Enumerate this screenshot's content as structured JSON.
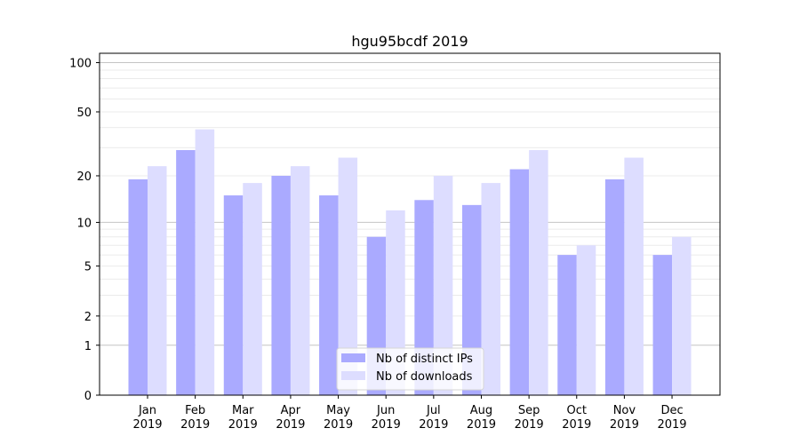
{
  "chart_data": {
    "type": "bar",
    "title": "hgu95bcdf 2019",
    "xlabel": "",
    "ylabel": "",
    "yscale": "log(1+x)",
    "ylim": [
      0,
      114
    ],
    "yticks": [
      0,
      1,
      2,
      5,
      10,
      20,
      50,
      100
    ],
    "categories": [
      "Jan\n2019",
      "Feb\n2019",
      "Mar\n2019",
      "Apr\n2019",
      "May\n2019",
      "Jun\n2019",
      "Jul\n2019",
      "Aug\n2019",
      "Sep\n2019",
      "Oct\n2019",
      "Nov\n2019",
      "Dec\n2019"
    ],
    "series": [
      {
        "name": "Nb of distinct IPs",
        "color": "#aaaaff",
        "values": [
          19,
          29,
          15,
          20,
          15,
          8,
          14,
          13,
          22,
          6,
          19,
          6
        ]
      },
      {
        "name": "Nb of downloads",
        "color": "#ddddff",
        "values": [
          23,
          39,
          18,
          23,
          26,
          12,
          20,
          18,
          29,
          7,
          26,
          8
        ]
      }
    ],
    "legend": "bottom-center",
    "grid": true
  }
}
